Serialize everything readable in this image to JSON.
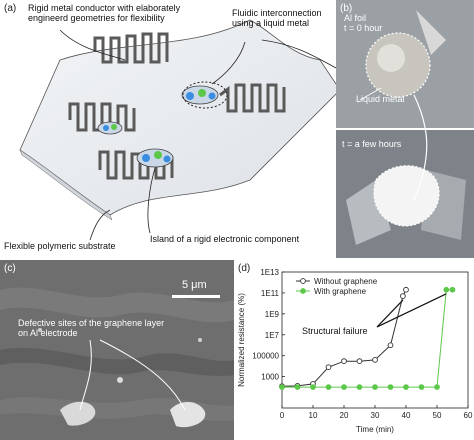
{
  "panel_a": {
    "label": "(a)",
    "annotations": {
      "rigid_conductor": [
        "Rigid metal conductor with elaborately",
        "engineerd geometries for flexibility"
      ],
      "fluidic": [
        "Fluidic interconnection",
        "using a liquid metal"
      ],
      "substrate": "Flexible polymeric substrate",
      "island": "Island of a rigid electronic component"
    }
  },
  "panel_b": {
    "label": "(b)",
    "foil": "Al foil",
    "t0": "t = 0 hour",
    "liquid_metal": "Liquid metal",
    "t1": "t = a few hours"
  },
  "panel_c": {
    "label": "(c)",
    "scale": "5 μm",
    "annotation": [
      "Defective sites of the graphene layer",
      "on Al electrode"
    ]
  },
  "panel_d": {
    "label": "(d)",
    "structural_failure": "Structural failure",
    "colors": {
      "without": "#333333",
      "with": "#5cc84a"
    }
  },
  "chart_data": {
    "type": "line",
    "xlabel": "Time (min)",
    "ylabel": "Normalized resistance (%)",
    "xlim": [
      0,
      60
    ],
    "ylim": [
      1,
      10000000000000.0
    ],
    "yscale": "log",
    "x_ticks": [
      0,
      10,
      20,
      30,
      40,
      50,
      60
    ],
    "y_ticks": [
      "1000",
      "100000",
      "1E7",
      "1E9",
      "1E11",
      "1E13"
    ],
    "series": [
      {
        "name": "Without graphene",
        "marker": "open-circle",
        "x": [
          0,
          5,
          10,
          15,
          20,
          25,
          30,
          35,
          39,
          40
        ],
        "y": [
          120,
          130,
          200,
          8000,
          30000,
          30000,
          40000,
          1000000,
          50000000000.0,
          200000000000.0
        ]
      },
      {
        "name": "With graphene",
        "marker": "filled-circle",
        "x": [
          0,
          5,
          10,
          15,
          20,
          25,
          30,
          35,
          40,
          45,
          50,
          53,
          55
        ],
        "y": [
          100,
          100,
          100,
          100,
          100,
          100,
          100,
          100,
          100,
          100,
          100,
          200000000000.0,
          200000000000.0
        ]
      }
    ]
  }
}
